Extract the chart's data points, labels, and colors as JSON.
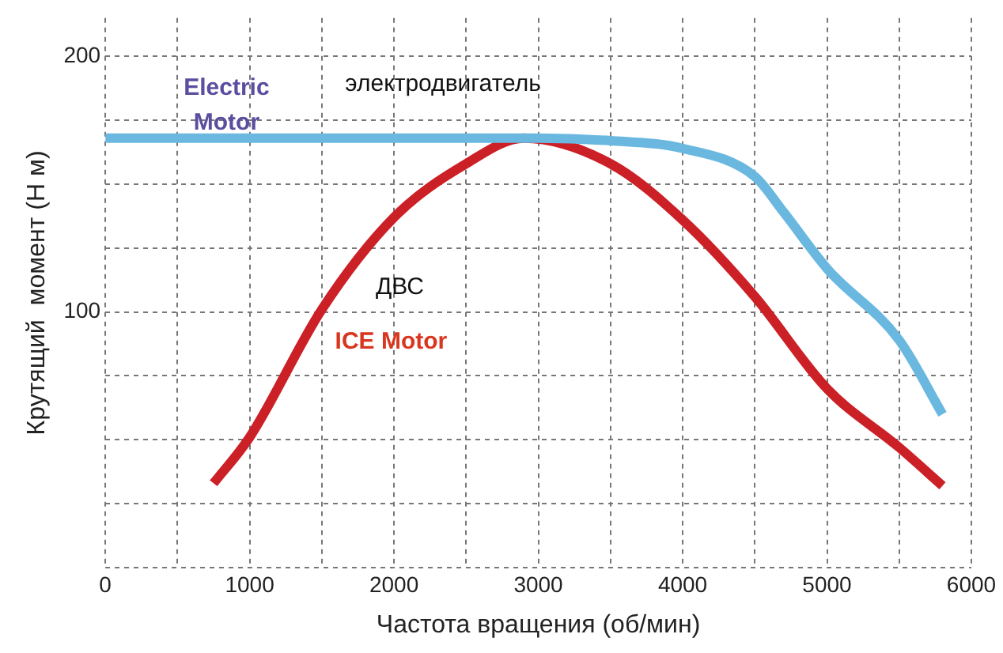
{
  "chart_data": {
    "type": "line",
    "xlabel": "Частота вращения (об/мин)",
    "ylabel": "Крутящий  момент (Н м)",
    "xlim": [
      0,
      6000
    ],
    "ylim": [
      0,
      215
    ],
    "xticks": [
      0,
      {
        "value": 500,
        "label": null
      },
      1000,
      {
        "value": 1500,
        "label": null
      },
      2000,
      {
        "value": 2500,
        "label": null
      },
      3000,
      {
        "value": 3500,
        "label": null
      },
      4000,
      {
        "value": 4500,
        "label": null
      },
      5000,
      {
        "value": 5500,
        "label": null
      },
      6000
    ],
    "yticks": [
      {
        "value": 0,
        "label": null
      },
      {
        "value": 25,
        "label": null
      },
      {
        "value": 50,
        "label": null
      },
      {
        "value": 75,
        "label": null
      },
      100,
      {
        "value": 125,
        "label": null
      },
      {
        "value": 150,
        "label": null
      },
      {
        "value": 175,
        "label": null
      },
      200
    ],
    "grid": true,
    "line_style": "solid",
    "marker": "none",
    "series": [
      {
        "color": "#6ab8e0",
        "x": [
          0,
          1000,
          2000,
          3000,
          3500,
          4000,
          4500,
          4700,
          5000,
          5500,
          5800
        ],
        "values": [
          168,
          168,
          168,
          168,
          167,
          164,
          153,
          139,
          117,
          89,
          60
        ]
      },
      {
        "color": "#cc2027",
        "x": [
          750,
          1000,
          1500,
          2000,
          2500,
          2900,
          3500,
          4000,
          4500,
          5000,
          5500,
          5800
        ],
        "values": [
          33,
          51,
          101,
          137,
          158,
          168,
          158,
          136,
          106,
          70,
          47,
          32
        ]
      }
    ],
    "annotations": [
      "Electric Motor",
      "электродвигатель",
      "ДВС",
      "ICE Motor"
    ]
  }
}
